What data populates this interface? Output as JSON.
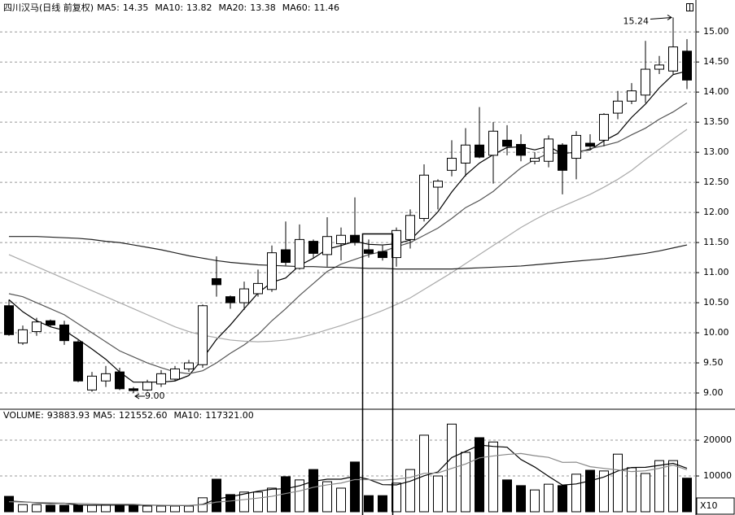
{
  "chart_data": [
    {
      "type": "candlestick",
      "title": "四川汉马(日线 前复权)",
      "up_color": "#ffffff",
      "down_color": "#000000",
      "open": [
        10.45,
        9.83,
        10.02,
        10.2,
        10.13,
        9.85,
        9.05,
        9.2,
        9.35,
        9.07,
        9.05,
        9.15,
        9.23,
        9.4,
        9.47,
        10.9,
        10.6,
        10.5,
        10.65,
        10.72,
        11.38,
        11.07,
        11.52,
        11.3,
        11.48,
        11.62,
        11.38,
        11.35,
        11.25,
        11.55,
        11.9,
        12.42,
        12.7,
        12.82,
        13.12,
        12.95,
        13.2,
        13.13,
        12.85,
        12.85,
        13.12,
        12.9,
        13.15,
        13.2,
        13.65,
        13.85,
        13.95,
        14.38,
        14.35,
        14.68
      ],
      "high": [
        10.55,
        10.12,
        10.25,
        10.22,
        10.2,
        9.88,
        9.35,
        9.45,
        9.42,
        9.1,
        9.22,
        9.38,
        9.45,
        9.55,
        10.47,
        11.27,
        10.62,
        10.85,
        11.05,
        11.45,
        11.85,
        11.8,
        11.55,
        11.92,
        11.75,
        12.25,
        11.55,
        11.45,
        11.75,
        12.05,
        12.8,
        12.55,
        13.2,
        13.4,
        13.75,
        13.5,
        13.45,
        13.3,
        13.0,
        13.28,
        13.15,
        13.35,
        13.3,
        13.65,
        14.02,
        14.15,
        14.85,
        14.6,
        15.24,
        14.88
      ],
      "low": [
        9.95,
        9.8,
        9.95,
        10.1,
        9.8,
        9.18,
        9.02,
        9.1,
        9.05,
        9,
        9.03,
        9.1,
        9.2,
        9.35,
        9.42,
        10.6,
        10.4,
        10.38,
        10.6,
        10.68,
        11.12,
        11.05,
        11.25,
        11.1,
        11.2,
        11.45,
        11.25,
        11.2,
        11.1,
        11.4,
        11.85,
        12.05,
        12.6,
        12.6,
        12.9,
        12.48,
        12.95,
        12.85,
        12.8,
        12.75,
        12.3,
        12.55,
        13.05,
        13.1,
        13.55,
        13.8,
        13.82,
        14.3,
        14.3,
        14.05
      ],
      "close": [
        9.97,
        10.05,
        10.18,
        10.13,
        9.87,
        9.2,
        9.28,
        9.32,
        9.07,
        9.04,
        9.18,
        9.32,
        9.4,
        9.5,
        10.45,
        10.8,
        10.5,
        10.73,
        10.82,
        11.33,
        11.17,
        11.55,
        11.32,
        11.6,
        11.62,
        11.5,
        11.32,
        11.25,
        11.7,
        11.95,
        12.62,
        12.52,
        12.9,
        13.12,
        12.92,
        13.35,
        13.1,
        12.95,
        12.9,
        13.22,
        12.7,
        13.28,
        13.1,
        13.63,
        13.85,
        14.02,
        14.38,
        14.45,
        14.75,
        14.2
      ],
      "indicators": [
        {
          "name": "MA5:",
          "value": 14.35,
          "color": "#000000",
          "text_color": "#000000",
          "values": [
            10.55,
            10.35,
            10.2,
            10.1,
            10.04,
            9.89,
            9.73,
            9.56,
            9.35,
            9.18,
            9.18,
            9.18,
            9.2,
            9.29,
            9.57,
            9.89,
            10.13,
            10.4,
            10.66,
            10.84,
            10.91,
            11.12,
            11.24,
            11.39,
            11.45,
            11.52,
            11.47,
            11.46,
            11.48,
            11.54,
            11.77,
            12.01,
            12.34,
            12.62,
            12.82,
            12.96,
            13.08,
            13.09,
            13.04,
            13.1,
            12.97,
            13.01,
            13.04,
            13.19,
            13.31,
            13.58,
            13.8,
            14.07,
            14.29,
            14.35
          ]
        },
        {
          "name": "MA10:",
          "value": 13.82,
          "color": "#555555",
          "text_color": "#000000",
          "values": [
            10.65,
            10.6,
            10.5,
            10.4,
            10.3,
            10.15,
            10.0,
            9.85,
            9.7,
            9.6,
            9.5,
            9.42,
            9.35,
            9.32,
            9.37,
            9.5,
            9.66,
            9.8,
            9.97,
            10.2,
            10.4,
            10.62,
            10.82,
            11.02,
            11.14,
            11.22,
            11.3,
            11.35,
            11.43,
            11.5,
            11.62,
            11.74,
            11.9,
            12.08,
            12.2,
            12.35,
            12.55,
            12.74,
            12.88,
            12.98,
            12.99,
            12.99,
            13.06,
            13.11,
            13.17,
            13.29,
            13.4,
            13.55,
            13.67,
            13.82
          ]
        },
        {
          "name": "MA20:",
          "value": 13.38,
          "color": "#aaaaaa",
          "text_color": "#999999",
          "values": [
            11.3,
            11.2,
            11.1,
            11.0,
            10.9,
            10.8,
            10.7,
            10.6,
            10.5,
            10.4,
            10.3,
            10.2,
            10.1,
            10.02,
            9.96,
            9.92,
            9.88,
            9.86,
            9.85,
            9.86,
            9.88,
            9.92,
            9.98,
            10.05,
            10.12,
            10.2,
            10.28,
            10.37,
            10.47,
            10.58,
            10.72,
            10.86,
            11.0,
            11.15,
            11.3,
            11.45,
            11.6,
            11.75,
            11.88,
            12.0,
            12.1,
            12.2,
            12.3,
            12.42,
            12.55,
            12.7,
            12.88,
            13.05,
            13.22,
            13.38
          ]
        },
        {
          "name": "MA60:",
          "value": 11.46,
          "color": "#222222",
          "text_color": "#000000",
          "values": [
            11.6,
            11.6,
            11.6,
            11.59,
            11.58,
            11.57,
            11.55,
            11.52,
            11.5,
            11.46,
            11.42,
            11.38,
            11.33,
            11.28,
            11.24,
            11.2,
            11.17,
            11.15,
            11.13,
            11.12,
            11.11,
            11.1,
            11.1,
            11.09,
            11.09,
            11.08,
            11.07,
            11.07,
            11.06,
            11.06,
            11.06,
            11.06,
            11.06,
            11.07,
            11.08,
            11.09,
            11.1,
            11.11,
            11.13,
            11.15,
            11.17,
            11.19,
            11.21,
            11.23,
            11.26,
            11.29,
            11.32,
            11.36,
            11.41,
            11.46
          ]
        }
      ],
      "annotations": [
        {
          "value": 15.24
        },
        {
          "value": 9,
          "label": "9.00"
        }
      ],
      "ylim": [
        8.73,
        15.53
      ],
      "yticks": [
        {
          "value": 9,
          "label": "9.00"
        },
        {
          "value": 9.5,
          "label": "9.50"
        },
        {
          "value": 10,
          "label": "10.00"
        },
        {
          "value": 10.5,
          "label": "10.50"
        },
        {
          "value": 11,
          "label": "11.00"
        },
        {
          "value": 11.5,
          "label": "11.50"
        },
        {
          "value": 12,
          "label": "12.00"
        },
        {
          "value": 12.5,
          "label": "12.50"
        },
        {
          "value": 13,
          "label": "13.00"
        },
        {
          "value": 13.5,
          "label": "13.50"
        },
        {
          "value": 14,
          "label": "14.00"
        },
        {
          "value": 14.5,
          "label": "14.50"
        },
        {
          "value": 15,
          "label": "15.00"
        }
      ],
      "grid": true
    },
    {
      "type": "bar",
      "title": "VOLUME:",
      "value": 93883.93,
      "multiplier": "X10",
      "values": [
        4300,
        2000,
        2000,
        1800,
        1800,
        1800,
        1800,
        2000,
        2000,
        1800,
        1600,
        1600,
        1600,
        1600,
        3900,
        9100,
        4800,
        5500,
        5500,
        6600,
        9800,
        8900,
        11800,
        8400,
        6600,
        13900,
        4500,
        4500,
        8000,
        11800,
        21400,
        10000,
        24500,
        16600,
        20700,
        19500,
        8900,
        7300,
        6100,
        7700,
        7300,
        10500,
        11600,
        11400,
        16100,
        12300,
        10700,
        14300,
        14300,
        9388
      ],
      "indicators": [
        {
          "name": "MA5:",
          "value": 121552.6,
          "label": "121552.60",
          "color": "#000000",
          "text_color": "#000000",
          "values": [
            3000,
            2800,
            2500,
            2300,
            2380,
            1880,
            1840,
            1840,
            1880,
            1880,
            1840,
            1800,
            1720,
            1720,
            2060,
            3560,
            4200,
            4980,
            5760,
            6300,
            6440,
            7260,
            8520,
            9100,
            9100,
            9920,
            9040,
            7580,
            7500,
            8540,
            10040,
            11140,
            15140,
            16860,
            18640,
            18260,
            18040,
            14600,
            12500,
            9900,
            7460,
            7780,
            8640,
            9700,
            11380,
            12380,
            12420,
            12960,
            13540,
            12155
          ]
        },
        {
          "name": "MA10:",
          "value": 117321,
          "label": "117321.00",
          "color": "#888888",
          "text_color": "#999999",
          "values": [
            2800,
            2700,
            2600,
            2500,
            2400,
            2300,
            2200,
            2100,
            2100,
            2100,
            1860,
            1820,
            1780,
            1800,
            1970,
            2700,
            3000,
            3400,
            3820,
            4300,
            5100,
            5820,
            6840,
            7520,
            8020,
            9000,
            8970,
            8840,
            9090,
            9610,
            10730,
            10850,
            12120,
            13340,
            15050,
            15590,
            16020,
            16280,
            15660,
            15200,
            13800,
            13850,
            12600,
            12130,
            11690,
            11220,
            11440,
            12140,
            13040,
            11732
          ]
        }
      ],
      "ylim": [
        0,
        28200
      ],
      "yticks": [
        10000,
        20000
      ],
      "grid": true
    }
  ]
}
